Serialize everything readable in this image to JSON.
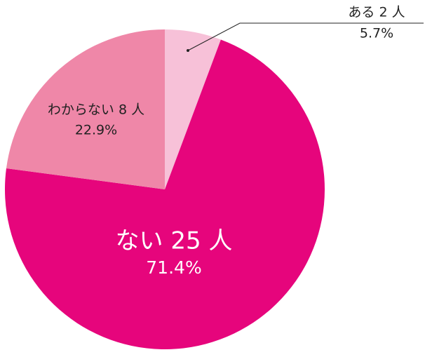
{
  "chart_data": {
    "type": "pie",
    "categories": [
      "ある 2 人",
      "ない 25 人",
      "わからない 8 人"
    ],
    "values": [
      5.7,
      71.4,
      22.9
    ],
    "value_labels": [
      "5.7%",
      "71.4%",
      "22.9%"
    ],
    "colors": [
      "#f7c1d8",
      "#e6057c",
      "#ef87a8"
    ]
  }
}
